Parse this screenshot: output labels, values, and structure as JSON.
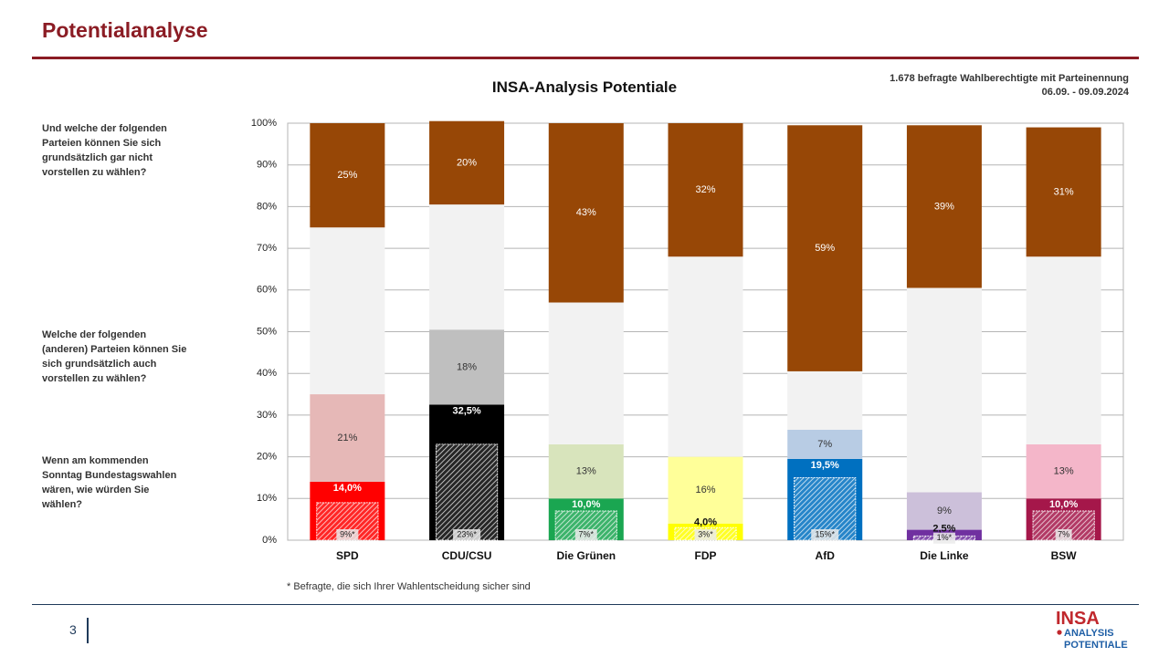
{
  "header": {
    "page_title": "Potentialanalyse",
    "source_line1": "1.678 befragte Wahlberechtigte mit Parteinennung",
    "source_line2": "06.09. - 09.09.2024"
  },
  "questions": {
    "q1": "Und welche der folgenden Parteien können Sie sich grundsätzlich gar nicht vorstellen zu wählen?",
    "q2": "Welche der folgenden (anderen) Parteien können Sie sich grundsätzlich auch vorstellen zu wählen?",
    "q3": "Wenn am kommenden Sonntag Bundestagswahlen wären, wie würden Sie wählen?"
  },
  "footnote": "* Befragte, die sich Ihrer Wahlentscheidung sicher sind",
  "footer": {
    "page_number": "3"
  },
  "logo": {
    "line1": "INSA",
    "line2": "ANALYSIS",
    "line3": "POTENTIALE"
  },
  "chart_data": {
    "type": "bar",
    "stacked": true,
    "title": "INSA-Analysis Potentiale",
    "categories": [
      "SPD",
      "CDU/CSU",
      "Die Grünen",
      "FDP",
      "AfD",
      "Die Linke",
      "BSW"
    ],
    "ylim": [
      0,
      100
    ],
    "yticks": [
      0,
      10,
      20,
      30,
      40,
      50,
      60,
      70,
      80,
      90,
      100
    ],
    "ytick_labels": [
      "0%",
      "10%",
      "20%",
      "30%",
      "40%",
      "50%",
      "60%",
      "70%",
      "80%",
      "90%",
      "100%"
    ],
    "grid": true,
    "series": [
      {
        "values": [
          14.0,
          32.5,
          10.0,
          4.0,
          19.5,
          2.5,
          10.0
        ],
        "labels": [
          "14,0%",
          "32,5%",
          "10,0%",
          "4,0%",
          "19,5%",
          "2,5%",
          "10,0%"
        ]
      },
      {
        "values": [
          21,
          18,
          13,
          16,
          7,
          9,
          13
        ],
        "labels": [
          "21%",
          "18%",
          "13%",
          "16%",
          "7%",
          "9%",
          "13%"
        ]
      },
      {
        "values": [
          40,
          30,
          34,
          48,
          14,
          49,
          45
        ],
        "labels": [
          "",
          "",
          "",
          "",
          "",
          "",
          ""
        ]
      },
      {
        "values": [
          25,
          20,
          43,
          32,
          59,
          39,
          31
        ],
        "labels": [
          "25%",
          "20%",
          "43%",
          "32%",
          "59%",
          "39%",
          "31%"
        ]
      }
    ],
    "sure_voters": {
      "values": [
        9,
        23,
        7,
        3,
        15,
        1,
        7
      ],
      "labels": [
        "9%*",
        "23%*",
        "7%*",
        "3%*",
        "15%*",
        "1%*",
        "7%"
      ]
    },
    "colors": {
      "vote": [
        "#ff0000",
        "#000000",
        "#1aa651",
        "#ffff00",
        "#0070c0",
        "#7030a0",
        "#a5174a"
      ],
      "possible": [
        "#e6b8b7",
        "#bfbfbf",
        "#d8e4bc",
        "#ffff99",
        "#b8cce4",
        "#ccc0da",
        "#f4b6c9"
      ],
      "neutral": "#f2f2f2",
      "never": "#974706"
    }
  }
}
